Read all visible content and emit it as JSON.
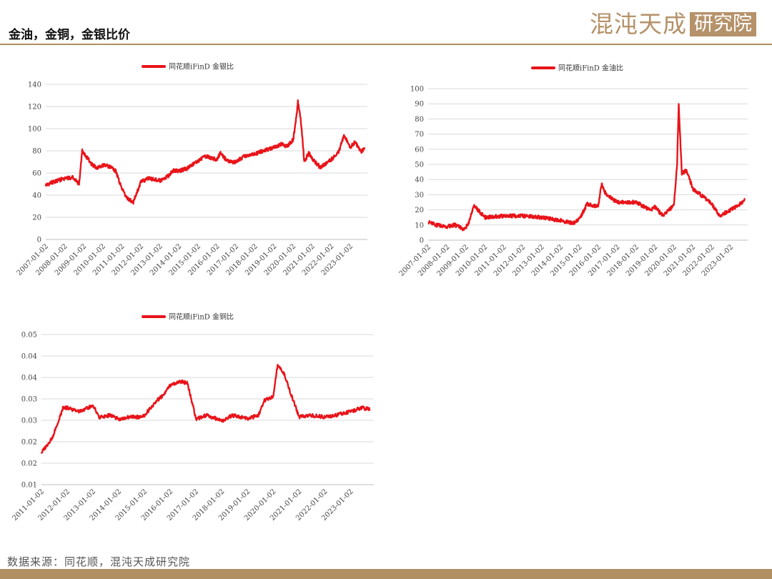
{
  "page": {
    "title": "金油，金铜，金银比价",
    "source": "数据来源：同花顺，混沌天成研究院",
    "logo_text": "混沌天成",
    "logo_box_text": "研究院"
  },
  "colors": {
    "accent": "#b08f63",
    "series": "#e8141a"
  },
  "chart_data": [
    {
      "type": "line",
      "title": "",
      "legend": "top",
      "series": [
        {
          "name": "同花顺iFinD 金银比"
        }
      ],
      "ylim": [
        0,
        140
      ],
      "yticks": [
        "0",
        "20",
        "40",
        "60",
        "80",
        "100",
        "120",
        "140"
      ],
      "xticks": [
        "2007-01-02",
        "2008-01-02",
        "2009-01-02",
        "2010-01-02",
        "2011-01-02",
        "2012-01-02",
        "2013-01-02",
        "2014-01-02",
        "2015-01-02",
        "2016-01-02",
        "2017-01-02",
        "2018-01-02",
        "2019-01-02",
        "2020-01-02",
        "2021-01-02",
        "2022-01-02",
        "2023-01-02"
      ],
      "x": [
        "2007-01",
        "2007-06",
        "2008-01",
        "2008-06",
        "2008-10",
        "2008-12",
        "2009-03",
        "2009-06",
        "2009-09",
        "2010-01",
        "2010-05",
        "2010-09",
        "2011-01",
        "2011-04",
        "2011-08",
        "2012-01",
        "2012-06",
        "2013-01",
        "2013-06",
        "2013-09",
        "2014-01",
        "2014-06",
        "2015-01",
        "2015-06",
        "2016-01",
        "2016-03",
        "2016-06",
        "2016-09",
        "2017-01",
        "2017-06",
        "2018-01",
        "2018-06",
        "2019-01",
        "2019-06",
        "2019-09",
        "2020-01",
        "2020-03",
        "2020-04",
        "2020-06",
        "2020-08",
        "2020-11",
        "2021-01",
        "2021-06",
        "2022-01",
        "2022-06",
        "2022-09",
        "2023-01",
        "2023-04",
        "2023-08",
        "2023-10"
      ],
      "y": [
        49,
        52,
        55,
        56,
        50,
        80,
        74,
        68,
        65,
        67,
        66,
        62,
        46,
        38,
        33,
        52,
        55,
        53,
        57,
        62,
        62,
        64,
        71,
        75,
        72,
        78,
        73,
        70,
        70,
        75,
        77,
        80,
        83,
        86,
        84,
        90,
        110,
        124,
        105,
        70,
        78,
        73,
        65,
        72,
        80,
        94,
        83,
        88,
        79,
        83
      ]
    },
    {
      "type": "line",
      "title": "",
      "legend": "top",
      "series": [
        {
          "name": "同花顺iFinD 金油比"
        }
      ],
      "ylim": [
        0,
        100
      ],
      "yticks": [
        "0",
        "10",
        "20",
        "30",
        "40",
        "50",
        "60",
        "70",
        "80",
        "90",
        "100"
      ],
      "xticks": [
        "2007-01-02",
        "2008-01-02",
        "2009-01-02",
        "2010-01-02",
        "2011-01-02",
        "2012-01-02",
        "2013-01-02",
        "2014-01-02",
        "2015-01-02",
        "2016-01-02",
        "2017-01-02",
        "2018-01-02",
        "2019-01-02",
        "2020-01-02",
        "2021-01-02",
        "2022-01-02",
        "2023-01-02"
      ],
      "x": [
        "2007-01",
        "2007-06",
        "2008-01",
        "2008-06",
        "2008-10",
        "2008-12",
        "2009-03",
        "2009-06",
        "2010-01",
        "2011-01",
        "2012-01",
        "2013-01",
        "2014-01",
        "2014-09",
        "2015-01",
        "2015-06",
        "2016-01",
        "2016-03",
        "2016-06",
        "2017-01",
        "2018-01",
        "2018-10",
        "2019-01",
        "2019-06",
        "2020-01",
        "2020-03",
        "2020-04",
        "2020-06",
        "2020-09",
        "2021-01",
        "2021-06",
        "2022-01",
        "2022-06",
        "2023-01",
        "2023-06",
        "2023-10"
      ],
      "y": [
        12,
        10,
        9,
        10,
        8,
        7,
        12,
        23,
        15,
        16,
        16,
        15,
        13,
        11,
        14,
        24,
        22,
        37,
        30,
        25,
        25,
        20,
        22,
        16,
        23,
        50,
        89,
        44,
        46,
        34,
        30,
        24,
        16,
        20,
        23,
        27
      ]
    },
    {
      "type": "line",
      "title": "",
      "legend": "top",
      "series": [
        {
          "name": "同花顺iFinD 金铜比"
        }
      ],
      "ylim": [
        0.01,
        0.05
      ],
      "yticks": [
        "0.01",
        "0.02",
        "0.02",
        "0.03",
        "0.03",
        "0.04",
        "0.04",
        "0.05"
      ],
      "xticks": [
        "2011-01-02",
        "2012-01-02",
        "2013-01-02",
        "2014-01-02",
        "2015-01-02",
        "2016-01-02",
        "2017-01-02",
        "2018-01-02",
        "2019-01-02",
        "2020-01-02",
        "2021-01-02",
        "2022-01-02",
        "2023-01-02"
      ],
      "x": [
        "2011-01",
        "2011-06",
        "2011-09",
        "2011-11",
        "2012-01",
        "2012-06",
        "2013-01",
        "2013-04",
        "2013-09",
        "2014-01",
        "2014-06",
        "2014-11",
        "2015-01",
        "2015-06",
        "2015-09",
        "2016-01",
        "2016-06",
        "2016-09",
        "2017-01",
        "2017-06",
        "2018-01",
        "2018-06",
        "2019-01",
        "2019-06",
        "2019-09",
        "2020-01",
        "2020-03",
        "2020-06",
        "2020-09",
        "2021-01",
        "2021-06",
        "2022-01",
        "2022-06",
        "2023-01",
        "2023-06",
        "2023-10"
      ],
      "y": [
        0.0185,
        0.0225,
        0.027,
        0.0305,
        0.0305,
        0.0295,
        0.031,
        0.028,
        0.0285,
        0.0275,
        0.028,
        0.028,
        0.0285,
        0.032,
        0.0335,
        0.0365,
        0.0375,
        0.037,
        0.0275,
        0.0285,
        0.027,
        0.0285,
        0.0275,
        0.0285,
        0.0325,
        0.0335,
        0.042,
        0.0395,
        0.0345,
        0.028,
        0.0285,
        0.028,
        0.0285,
        0.0295,
        0.0305,
        0.03
      ]
    }
  ]
}
